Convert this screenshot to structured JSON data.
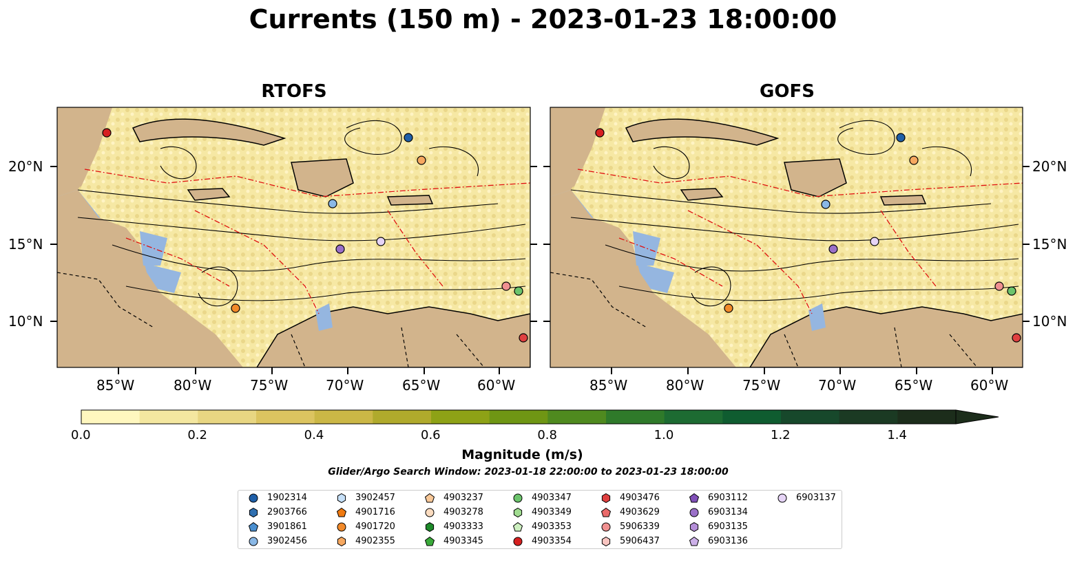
{
  "title": "Currents (150 m) - 2023-01-23 18:00:00",
  "panels": [
    {
      "title": "RTOFS"
    },
    {
      "title": "GOFS"
    }
  ],
  "lat_labels": [
    "20°N",
    "15°N",
    "10°N"
  ],
  "lon_labels": [
    "85°W",
    "80°W",
    "75°W",
    "70°W",
    "65°W",
    "60°W"
  ],
  "colorbar": {
    "label": "Magnitude (m/s)",
    "ticks": [
      "0.0",
      "0.2",
      "0.4",
      "0.6",
      "0.8",
      "1.0",
      "1.2",
      "1.4"
    ],
    "colors": [
      "#fff7bf",
      "#f4e7a0",
      "#e8d682",
      "#dcc460",
      "#cbb746",
      "#b0aa2c",
      "#8ea216",
      "#6f9614",
      "#4f8a1f",
      "#2f7a2a",
      "#1d6b32",
      "#0f5c30",
      "#17482b",
      "#1b3a23",
      "#1c2d1b"
    ]
  },
  "search_window": "Glider/Argo Search Window: 2023-01-18 22:00:00 to 2023-01-23 18:00:00",
  "legend": [
    {
      "id": "1902314",
      "shape": "circle",
      "color": "#1f5fa8"
    },
    {
      "id": "2903766",
      "shape": "hexagon",
      "color": "#2f6fb0"
    },
    {
      "id": "3901861",
      "shape": "pentagon",
      "color": "#4a8fd0"
    },
    {
      "id": "3902456",
      "shape": "circle",
      "color": "#8ab8e6"
    },
    {
      "id": "3902457",
      "shape": "hexagon",
      "color": "#c6e0f8"
    },
    {
      "id": "4901716",
      "shape": "pentagon",
      "color": "#f07a10"
    },
    {
      "id": "4901720",
      "shape": "circle",
      "color": "#f28a2a"
    },
    {
      "id": "4902355",
      "shape": "hexagon",
      "color": "#f6a860"
    },
    {
      "id": "4903237",
      "shape": "pentagon",
      "color": "#f8c898"
    },
    {
      "id": "4903278",
      "shape": "circle",
      "color": "#fbdcc0"
    },
    {
      "id": "4903333",
      "shape": "hexagon",
      "color": "#1e8a2a"
    },
    {
      "id": "4903345",
      "shape": "pentagon",
      "color": "#3aaa3a"
    },
    {
      "id": "4903347",
      "shape": "circle",
      "color": "#6cc46c"
    },
    {
      "id": "4903349",
      "shape": "hexagon",
      "color": "#a0dc90"
    },
    {
      "id": "4903353",
      "shape": "pentagon",
      "color": "#cdf0c0"
    },
    {
      "id": "4903354",
      "shape": "circle",
      "color": "#d62020"
    },
    {
      "id": "4903476",
      "shape": "hexagon",
      "color": "#e04040"
    },
    {
      "id": "4903629",
      "shape": "pentagon",
      "color": "#ea6a6a"
    },
    {
      "id": "5906339",
      "shape": "circle",
      "color": "#f09090"
    },
    {
      "id": "5906437",
      "shape": "hexagon",
      "color": "#f8c4c0"
    },
    {
      "id": "6903112",
      "shape": "pentagon",
      "color": "#8050b8"
    },
    {
      "id": "6903134",
      "shape": "circle",
      "color": "#9a70c8"
    },
    {
      "id": "6903135",
      "shape": "hexagon",
      "color": "#b48ed8"
    },
    {
      "id": "6903136",
      "shape": "pentagon",
      "color": "#ccb0e8"
    },
    {
      "id": "6903137",
      "shape": "circle",
      "color": "#e6d4f6"
    }
  ],
  "land_color": "#d2b48c",
  "water_shallow_color": "#95b6e0",
  "current_background": "#f6e8a4"
}
